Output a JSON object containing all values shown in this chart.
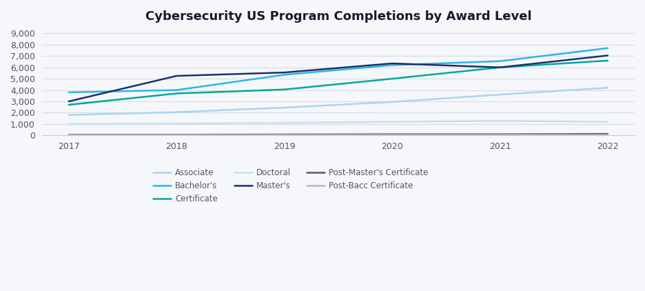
{
  "title": "Cybersecurity US Program Completions by Award Level",
  "years": [
    2017,
    2018,
    2019,
    2020,
    2021,
    2022
  ],
  "series": [
    {
      "label": "Associate",
      "color": "#aad4f0",
      "values": [
        1800,
        2050,
        2450,
        2950,
        3600,
        4200
      ],
      "linewidth": 1.8
    },
    {
      "label": "Bachelor's",
      "color": "#29b5e8",
      "values": [
        3800,
        4000,
        5350,
        6200,
        6550,
        7700
      ],
      "linewidth": 1.8
    },
    {
      "label": "Certificate",
      "color": "#00a896",
      "values": [
        2700,
        3700,
        4050,
        5000,
        6000,
        6600
      ],
      "linewidth": 1.8
    },
    {
      "label": "Doctoral",
      "color": "#c8dff5",
      "values": [
        1000,
        1050,
        1100,
        1200,
        1280,
        1200
      ],
      "linewidth": 1.8
    },
    {
      "label": "Master's",
      "color": "#1b2f6e",
      "values": [
        3000,
        5250,
        5550,
        6350,
        6000,
        7050
      ],
      "linewidth": 1.8
    },
    {
      "label": "Post-Master's Certificate",
      "color": "#5a5a5a",
      "values": [
        50,
        60,
        80,
        100,
        100,
        130
      ],
      "linewidth": 1.8
    },
    {
      "label": "Post-Bacc Certificate",
      "color": "#b8b8b8",
      "values": [
        20,
        25,
        30,
        35,
        40,
        40
      ],
      "linewidth": 1.8
    }
  ],
  "legend_order": [
    0,
    1,
    2,
    3,
    4,
    5,
    6
  ],
  "ylim": [
    0,
    9000
  ],
  "yticks": [
    0,
    1000,
    2000,
    3000,
    4000,
    5000,
    6000,
    7000,
    8000,
    9000
  ],
  "background_color": "#f5f7fa",
  "plot_bg_color": "#f5f7fa",
  "grid_color": "#d8dce4",
  "title_fontsize": 13,
  "legend_ncol": 3
}
